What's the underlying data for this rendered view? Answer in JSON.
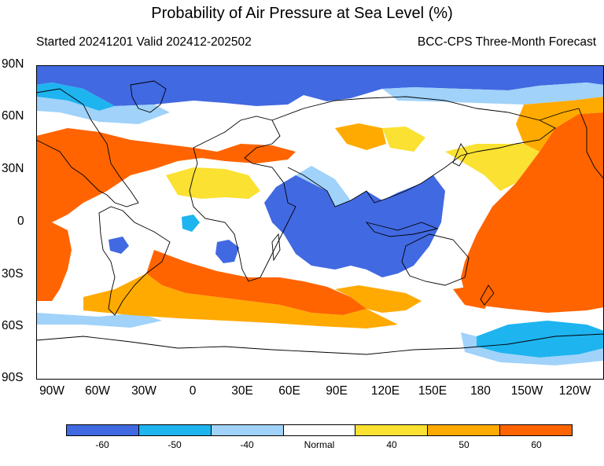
{
  "header": {
    "title": "Probability of Air Pressure at Sea Level (%)",
    "subtitle_left": "Started 20241201  Valid 202412-202502",
    "subtitle_right": "BCC-CPS Three-Month Forecast"
  },
  "map": {
    "lat_labels": [
      "90N",
      "60N",
      "30N",
      "0",
      "30S",
      "60S",
      "90S"
    ],
    "lon_labels": [
      "90W",
      "60W",
      "30W",
      "0",
      "30E",
      "60E",
      "90E",
      "120E",
      "150E",
      "180",
      "150W",
      "120W"
    ],
    "colors": {
      "below_60": "#4169e1",
      "below_50": "#1eb4f0",
      "below_40": "#a0d2fa",
      "normal": "#ffffff",
      "above_40": "#fae132",
      "above_50": "#ffaa00",
      "above_60": "#ff6400",
      "coast": "#000000"
    }
  },
  "colorbar": {
    "colors": [
      "#4169e1",
      "#1eb4f0",
      "#a0d2fa",
      "#ffffff",
      "#fae132",
      "#ffaa00",
      "#ff6400"
    ],
    "labels": [
      "-60",
      "-50",
      "-40",
      "Normal",
      "40",
      "50",
      "60"
    ]
  }
}
